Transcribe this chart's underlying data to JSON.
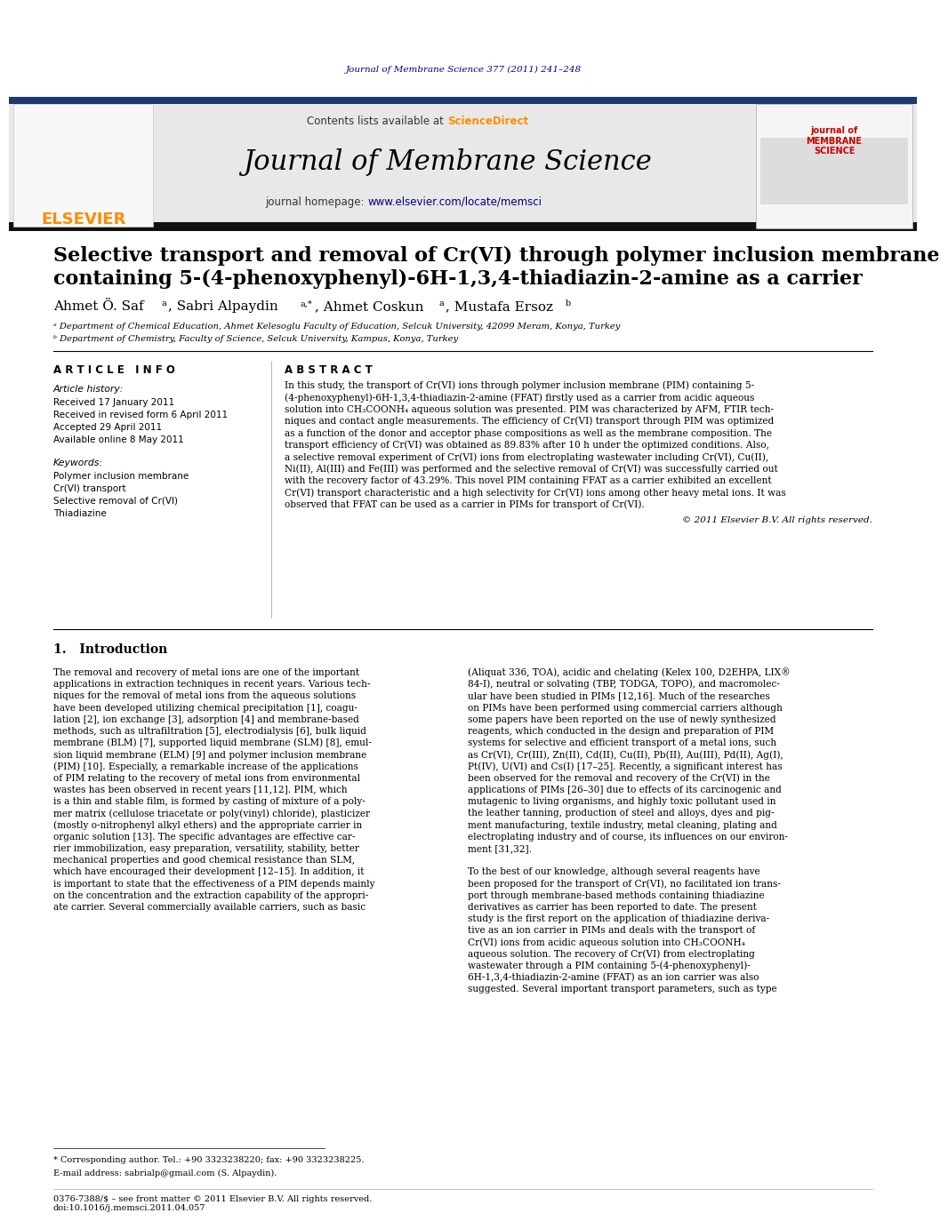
{
  "journal_citation": "Journal of Membrane Science 377 (2011) 241–248",
  "journal_name": "Journal of Membrane Science",
  "contents_text": "Contents lists available at ScienceDirect",
  "homepage_text": "journal homepage: www.elsevier.com/locate/memsci",
  "elsevier_text": "ELSEVIER",
  "title_line1": "Selective transport and removal of Cr(VI) through polymer inclusion membrane",
  "title_line2": "containing 5-(4-phenoxyphenyl)-6H-1,3,4-thiadiazin-2-amine as a carrier",
  "article_info_header": "A R T I C L E   I N F O",
  "abstract_header": "A B S T R A C T",
  "article_history_label": "Article history:",
  "received1": "Received 17 January 2011",
  "received2": "Received in revised form 6 April 2011",
  "accepted": "Accepted 29 April 2011",
  "available": "Available online 8 May 2011",
  "keywords_label": "Keywords:",
  "keyword1": "Polymer inclusion membrane",
  "keyword2": "Cr(VI) transport",
  "keyword3": "Selective removal of Cr(VI)",
  "keyword4": "Thiadiazine",
  "copyright": "© 2011 Elsevier B.V. All rights reserved.",
  "intro_header": "1.   Introduction",
  "footnote1": "* Corresponding author. Tel.: +90 3323238220; fax: +90 3323238225.",
  "footnote2": "E-mail address: sabrialp@gmail.com (S. Alpaydin).",
  "footer1": "0376-7388/$ – see front matter © 2011 Elsevier B.V. All rights reserved.",
  "footer2": "doi:10.1016/j.memsci.2011.04.057",
  "bg_color": "#ffffff",
  "header_bg": "#e8e8e8",
  "dark_bar_color": "#1a1a1a",
  "journal_color": "#00008B",
  "url_color": "#000080",
  "elsevier_color": "#ff8c00",
  "abstract_lines": [
    "In this study, the transport of Cr(VI) ions through polymer inclusion membrane (PIM) containing 5-",
    "(4-phenoxyphenyl)-6H-1,3,4-thiadiazin-2-amine (FFAT) firstly used as a carrier from acidic aqueous",
    "solution into CH₃COONH₄ aqueous solution was presented. PIM was characterized by AFM, FTIR tech-",
    "niques and contact angle measurements. The efficiency of Cr(VI) transport through PIM was optimized",
    "as a function of the donor and acceptor phase compositions as well as the membrane composition. The",
    "transport efficiency of Cr(VI) was obtained as 89.83% after 10 h under the optimized conditions. Also,",
    "a selective removal experiment of Cr(VI) ions from electroplating wastewater including Cr(VI), Cu(II),",
    "Ni(II), Al(III) and Fe(III) was performed and the selective removal of Cr(VI) was successfully carried out",
    "with the recovery factor of 43.29%. This novel PIM containing FFAT as a carrier exhibited an excellent",
    "Cr(VI) transport characteristic and a high selectivity for Cr(VI) ions among other heavy metal ions. It was",
    "observed that FFAT can be used as a carrier in PIMs for transport of Cr(VI)."
  ],
  "left_intro_lines": [
    "The removal and recovery of metal ions are one of the important",
    "applications in extraction techniques in recent years. Various tech-",
    "niques for the removal of metal ions from the aqueous solutions",
    "have been developed utilizing chemical precipitation [1], coagu-",
    "lation [2], ion exchange [3], adsorption [4] and membrane-based",
    "methods, such as ultrafiltration [5], electrodialysis [6], bulk liquid",
    "membrane (BLM) [7], supported liquid membrane (SLM) [8], emul-",
    "sion liquid membrane (ELM) [9] and polymer inclusion membrane",
    "(PIM) [10]. Especially, a remarkable increase of the applications",
    "of PIM relating to the recovery of metal ions from environmental",
    "wastes has been observed in recent years [11,12]. PIM, which",
    "is a thin and stable film, is formed by casting of mixture of a poly-",
    "mer matrix (cellulose triacetate or poly(vinyl) chloride), plasticizer",
    "(mostly o-nitrophenyl alkyl ethers) and the appropriate carrier in",
    "organic solution [13]. The specific advantages are effective car-",
    "rier immobilization, easy preparation, versatility, stability, better",
    "mechanical properties and good chemical resistance than SLM,",
    "which have encouraged their development [12–15]. In addition, it",
    "is important to state that the effectiveness of a PIM depends mainly",
    "on the concentration and the extraction capability of the appropri-",
    "ate carrier. Several commercially available carriers, such as basic"
  ],
  "right_intro_lines": [
    "(Aliquat 336, TOA), acidic and chelating (Kelex 100, D2EHPA, LIX®",
    "84-I), neutral or solvating (TBP, TODGA, TOPO), and macromolec-",
    "ular have been studied in PIMs [12,16]. Much of the researches",
    "on PIMs have been performed using commercial carriers although",
    "some papers have been reported on the use of newly synthesized",
    "reagents, which conducted in the design and preparation of PIM",
    "systems for selective and efficient transport of a metal ions, such",
    "as Cr(VI), Cr(III), Zn(II), Cd(II), Cu(II), Pb(II), Au(III), Pd(II), Ag(I),",
    "Pt(IV), U(VI) and Cs(I) [17–25]. Recently, a significant interest has",
    "been observed for the removal and recovery of the Cr(VI) in the",
    "applications of PIMs [26–30] due to effects of its carcinogenic and",
    "mutagenic to living organisms, and highly toxic pollutant used in",
    "the leather tanning, production of steel and alloys, dyes and pig-",
    "ment manufacturing, textile industry, metal cleaning, plating and",
    "electroplating industry and of course, its influences on our environ-",
    "ment [31,32].",
    "",
    "To the best of our knowledge, although several reagents have",
    "been proposed for the transport of Cr(VI), no facilitated ion trans-",
    "port through membrane-based methods containing thiadiazine",
    "derivatives as carrier has been reported to date. The present",
    "study is the first report on the application of thiadiazine deriva-",
    "tive as an ion carrier in PIMs and deals with the transport of",
    "Cr(VI) ions from acidic aqueous solution into CH₃COONH₄",
    "aqueous solution. The recovery of Cr(VI) from electroplating",
    "wastewater through a PIM containing 5-(4-phenoxyphenyl)-",
    "6H-1,3,4-thiadiazin-2-amine (FFAT) as an ion carrier was also",
    "suggested. Several important transport parameters, such as type"
  ]
}
